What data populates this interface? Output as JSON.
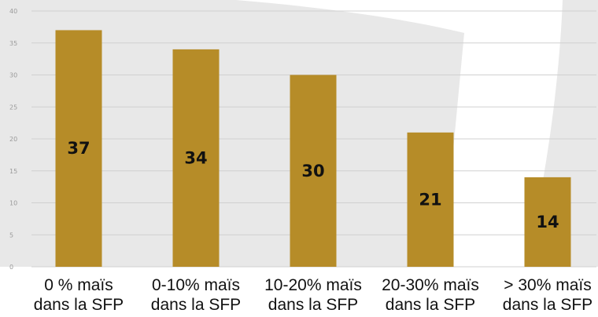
{
  "colors": {
    "bar": "#b68c28",
    "background_shape": "#e8e8e8",
    "grid": "#d0d0d0",
    "text": "#111111",
    "tick": "#9a9a9a"
  },
  "chart_data": {
    "type": "bar",
    "title": "",
    "xlabel": "",
    "ylabel": "",
    "ylim": [
      0,
      40
    ],
    "yticks": [
      0,
      5,
      10,
      15,
      20,
      25,
      30,
      35,
      40
    ],
    "grid": true,
    "categories": [
      [
        "0 % maïs",
        "dans la SFP"
      ],
      [
        "0-10% maïs",
        "dans la SFP"
      ],
      [
        "10-20% maïs",
        "dans la SFP"
      ],
      [
        "20-30% maïs",
        "dans la SFP"
      ],
      [
        "> 30% maïs",
        "dans la SFP"
      ]
    ],
    "values": [
      37,
      34,
      30,
      21,
      14
    ],
    "data_labels": [
      "37",
      "34",
      "30",
      "21",
      "14"
    ]
  }
}
